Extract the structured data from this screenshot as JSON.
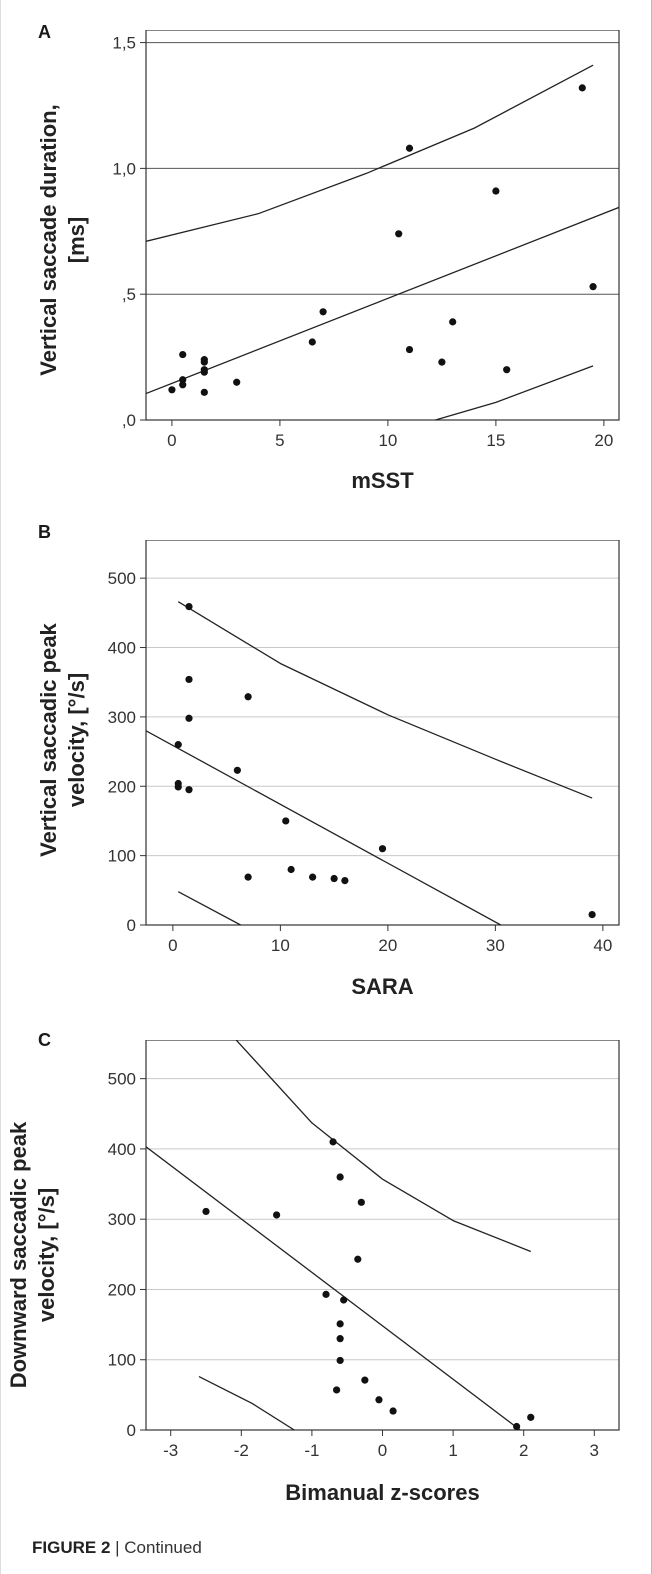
{
  "figure": {
    "caption_label": "FIGURE 2",
    "caption_text": " | Continued"
  },
  "chart_data": [
    {
      "panel": "A",
      "type": "scatter",
      "xlabel": "mSST",
      "ylabel": "Vertical saccade duration, [ms]",
      "xlim": [
        -1.2,
        20.7
      ],
      "ylim": [
        0,
        1.55
      ],
      "xticks": [
        0,
        5,
        10,
        15,
        20
      ],
      "xtick_labels": [
        "0",
        "5",
        "10",
        "15",
        "20"
      ],
      "yticks": [
        0,
        0.5,
        1.0,
        1.5
      ],
      "ytick_labels": [
        ",0",
        ",5",
        "1,0",
        "1,5"
      ],
      "grid": "horizontal",
      "points": [
        {
          "x": 0.0,
          "y": 0.12
        },
        {
          "x": 0.5,
          "y": 0.26
        },
        {
          "x": 0.5,
          "y": 0.16
        },
        {
          "x": 0.5,
          "y": 0.14
        },
        {
          "x": 1.5,
          "y": 0.24
        },
        {
          "x": 1.5,
          "y": 0.23
        },
        {
          "x": 1.5,
          "y": 0.2
        },
        {
          "x": 1.5,
          "y": 0.19
        },
        {
          "x": 1.5,
          "y": 0.11
        },
        {
          "x": 3.0,
          "y": 0.15
        },
        {
          "x": 6.5,
          "y": 0.31
        },
        {
          "x": 7.0,
          "y": 0.43
        },
        {
          "x": 10.5,
          "y": 0.74
        },
        {
          "x": 11.0,
          "y": 1.08
        },
        {
          "x": 11.0,
          "y": 0.28
        },
        {
          "x": 12.5,
          "y": 0.23
        },
        {
          "x": 13.0,
          "y": 0.39
        },
        {
          "x": 15.0,
          "y": 0.91
        },
        {
          "x": 15.5,
          "y": 0.2
        },
        {
          "x": 19.0,
          "y": 1.32
        },
        {
          "x": 19.5,
          "y": 0.53
        }
      ],
      "fit_line": [
        [
          -1.2,
          0.105
        ],
        [
          20.7,
          0.845
        ]
      ],
      "upper_band": [
        [
          -1.2,
          0.71
        ],
        [
          4.0,
          0.82
        ],
        [
          9.0,
          0.98
        ],
        [
          14.0,
          1.16
        ],
        [
          19.5,
          1.41
        ]
      ],
      "lower_band": [
        [
          12.2,
          0.0
        ],
        [
          15.0,
          0.07
        ],
        [
          19.5,
          0.215
        ]
      ]
    },
    {
      "panel": "B",
      "type": "scatter",
      "xlabel": "SARA",
      "ylabel": "Vertical saccadic peak velocity, [°/s]",
      "xlim": [
        -2.5,
        41.5
      ],
      "ylim": [
        0,
        555
      ],
      "xticks": [
        0,
        10,
        20,
        30,
        40
      ],
      "xtick_labels": [
        "0",
        "10",
        "20",
        "30",
        "40"
      ],
      "yticks": [
        0,
        100,
        200,
        300,
        400,
        500
      ],
      "ytick_labels": [
        "0",
        "100",
        "200",
        "300",
        "400",
        "500"
      ],
      "grid": "horizontal",
      "points": [
        {
          "x": 0.5,
          "y": 260
        },
        {
          "x": 0.5,
          "y": 204
        },
        {
          "x": 0.5,
          "y": 199
        },
        {
          "x": 1.5,
          "y": 459
        },
        {
          "x": 1.5,
          "y": 354
        },
        {
          "x": 1.5,
          "y": 298
        },
        {
          "x": 1.5,
          "y": 195
        },
        {
          "x": 6.0,
          "y": 223
        },
        {
          "x": 7.0,
          "y": 329
        },
        {
          "x": 7.0,
          "y": 69
        },
        {
          "x": 10.5,
          "y": 150
        },
        {
          "x": 11.0,
          "y": 80
        },
        {
          "x": 13.0,
          "y": 69
        },
        {
          "x": 15.0,
          "y": 67
        },
        {
          "x": 16.0,
          "y": 64
        },
        {
          "x": 19.5,
          "y": 110
        },
        {
          "x": 39.0,
          "y": 15
        }
      ],
      "fit_line": [
        [
          -2.5,
          280
        ],
        [
          30.5,
          0
        ]
      ],
      "upper_band": [
        [
          0.5,
          466
        ],
        [
          10.0,
          377
        ],
        [
          20.0,
          303
        ],
        [
          30.0,
          239
        ],
        [
          39.0,
          183
        ]
      ],
      "lower_band": [
        [
          0.5,
          48
        ],
        [
          6.3,
          0
        ]
      ]
    },
    {
      "panel": "C",
      "type": "scatter",
      "xlabel": "Bimanual z-scores",
      "ylabel": "Downward saccadic peak velocity, [°/s]",
      "xlim": [
        -3.35,
        3.35
      ],
      "ylim": [
        0,
        555
      ],
      "xticks": [
        -3,
        -2,
        -1,
        0,
        1,
        2,
        3
      ],
      "xtick_labels": [
        "-3",
        "-2",
        "-1",
        "0",
        "1",
        "2",
        "3"
      ],
      "yticks": [
        0,
        100,
        200,
        300,
        400,
        500
      ],
      "ytick_labels": [
        "0",
        "100",
        "200",
        "300",
        "400",
        "500"
      ],
      "grid": "horizontal",
      "points": [
        {
          "x": -2.5,
          "y": 311
        },
        {
          "x": -1.5,
          "y": 306
        },
        {
          "x": -0.7,
          "y": 410
        },
        {
          "x": -0.6,
          "y": 360
        },
        {
          "x": -0.3,
          "y": 324
        },
        {
          "x": -0.35,
          "y": 243
        },
        {
          "x": -0.8,
          "y": 193
        },
        {
          "x": -0.55,
          "y": 185
        },
        {
          "x": -0.6,
          "y": 151
        },
        {
          "x": -0.6,
          "y": 130
        },
        {
          "x": -0.6,
          "y": 99
        },
        {
          "x": -0.25,
          "y": 71
        },
        {
          "x": -0.65,
          "y": 57
        },
        {
          "x": -0.05,
          "y": 43
        },
        {
          "x": 0.15,
          "y": 27
        },
        {
          "x": 1.9,
          "y": 5
        },
        {
          "x": 2.1,
          "y": 18
        }
      ],
      "fit_line": [
        [
          -3.35,
          403
        ],
        [
          1.95,
          0
        ]
      ],
      "upper_band": [
        [
          -2.1,
          558
        ],
        [
          -1.0,
          437
        ],
        [
          0.0,
          357
        ],
        [
          1.0,
          298
        ],
        [
          2.1,
          254
        ]
      ],
      "lower_band": [
        [
          -2.6,
          76
        ],
        [
          -1.85,
          38
        ],
        [
          -1.25,
          0
        ]
      ]
    }
  ]
}
